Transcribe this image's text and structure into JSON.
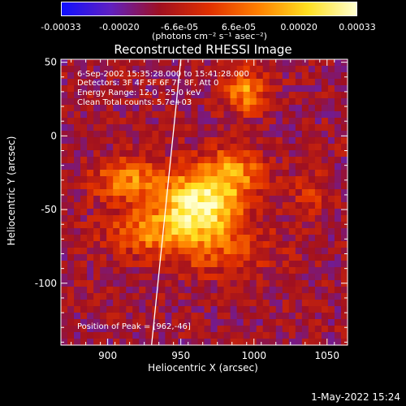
{
  "colorbar": {
    "tick_labels": [
      "-0.00033",
      "-0.00020",
      "-6.6e-05",
      "6.6e-05",
      "0.00020",
      "0.00033"
    ],
    "tick_values": [
      -0.00033,
      -0.0002,
      -6.6e-05,
      6.6e-05,
      0.0002,
      0.00033
    ],
    "range": [
      -0.00033,
      0.00033
    ],
    "unit_label": "(photons cm⁻² s⁻¹ asec⁻²)",
    "colors": [
      "#1010ff",
      "#6020c0",
      "#a01020",
      "#e03000",
      "#ff8000",
      "#ffe020",
      "#ffffd0"
    ]
  },
  "chart_data": {
    "type": "heatmap",
    "title": "Reconstructed RHESSI Image",
    "xlabel": "Heliocentric X (arcsec)",
    "ylabel": "Heliocentric Y (arcsec)",
    "xlim": [
      868,
      1064
    ],
    "ylim": [
      -142,
      52
    ],
    "x_ticks": [
      900,
      950,
      1000,
      1050
    ],
    "y_ticks": [
      50,
      0,
      -50,
      -100
    ],
    "peak": [
      962,
      -46
    ],
    "limb_curve_x": [
      950,
      940,
      930
    ],
    "limb_curve_y": [
      52,
      -45,
      -142
    ],
    "info_lines": [
      "6-Sep-2002 15:35:28.000 to 15:41:28.000",
      "Detectors: 3F 4F 5F 6F 7F 8F, Att 0",
      "Energy Range: 12.0 - 25.0 keV",
      "Clean     Total counts: 5.7e+03"
    ],
    "peak_label": "Position of Peak = [962,-46]",
    "blobs": [
      {
        "x": 962,
        "y": -46,
        "sx": 18,
        "sy": 14,
        "amp": 1.0
      },
      {
        "x": 985,
        "y": -25,
        "sx": 16,
        "sy": 12,
        "amp": 0.55
      },
      {
        "x": 995,
        "y": 30,
        "sx": 10,
        "sy": 10,
        "amp": 0.6
      },
      {
        "x": 915,
        "y": -30,
        "sx": 18,
        "sy": 10,
        "amp": 0.55
      },
      {
        "x": 930,
        "y": -65,
        "sx": 22,
        "sy": 12,
        "amp": 0.45
      },
      {
        "x": 975,
        "y": -75,
        "sx": 25,
        "sy": 14,
        "amp": 0.35
      },
      {
        "x": 1040,
        "y": -40,
        "sx": 10,
        "sy": 10,
        "amp": 0.25
      }
    ]
  },
  "footer": {
    "timestamp": "1-May-2022 15:24"
  }
}
